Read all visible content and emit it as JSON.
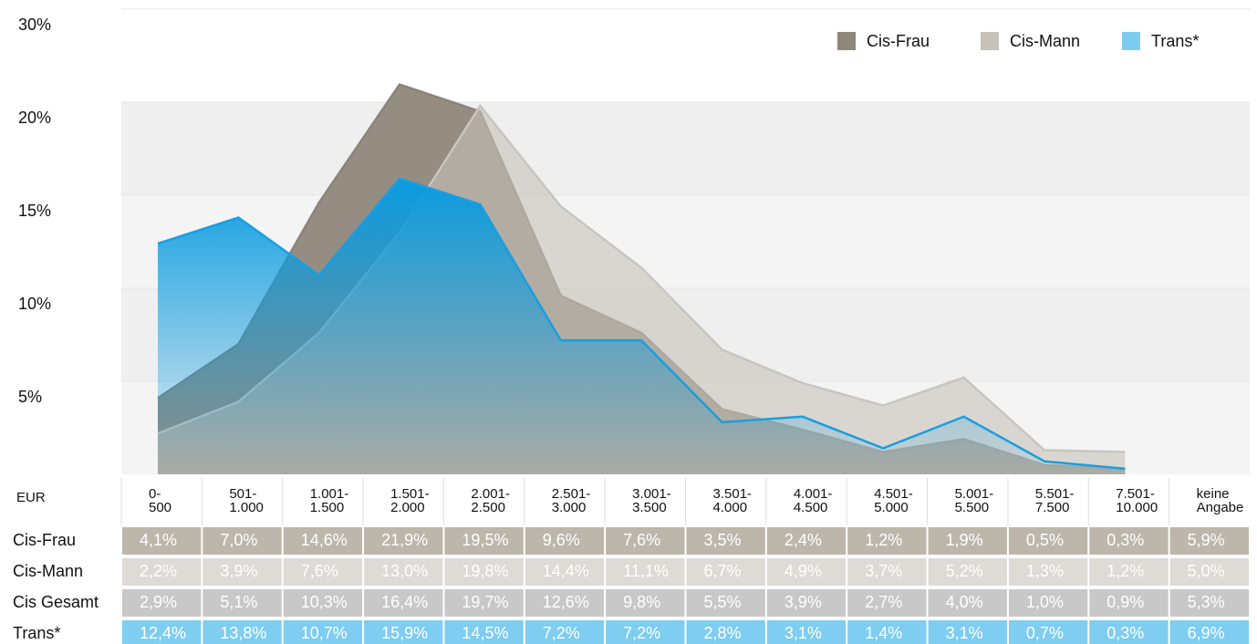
{
  "chart_data": {
    "type": "area",
    "categories": [
      "0-500",
      "501-1.000",
      "1.001-1.500",
      "1.501-2.000",
      "2.001-2.500",
      "2.501-3.000",
      "3.001-3.500",
      "3.501-4.000",
      "4.001-4.500",
      "4.501-5.000",
      "5.001-5.500",
      "5.501-7.500",
      "7.501-10.000",
      "keine Angabe"
    ],
    "unit_header": "EUR",
    "ylim": [
      0,
      30
    ],
    "yticks": [
      {
        "value": 5,
        "label": "5%"
      },
      {
        "value": 10,
        "label": "10%"
      },
      {
        "value": 15,
        "label": "15%"
      },
      {
        "value": 20,
        "label": "20%"
      },
      {
        "value": 30,
        "label": "30%"
      }
    ],
    "legend": "top-right",
    "series": [
      {
        "name": "Cis-Frau",
        "color": "#8f877a",
        "cell_color": "#bdb6ab",
        "area": true,
        "values": [
          4.1,
          7.0,
          14.6,
          21.9,
          19.5,
          9.6,
          7.6,
          3.5,
          2.4,
          1.2,
          1.9,
          0.5,
          0.3,
          5.9
        ],
        "value_labels": [
          "4,1%",
          "7,0%",
          "14,6%",
          "21,9%",
          "19,5%",
          "9,6%",
          "7,6%",
          "3,5%",
          "2,4%",
          "1,2%",
          "1,9%",
          "0,5%",
          "0,3%",
          "5,9%"
        ]
      },
      {
        "name": "Cis-Mann",
        "color": "#c6c1b9",
        "cell_color": "#dedad5",
        "area": true,
        "values": [
          2.2,
          3.9,
          7.6,
          13.0,
          19.8,
          14.4,
          11.1,
          6.7,
          4.9,
          3.7,
          5.2,
          1.3,
          1.2,
          5.0
        ],
        "value_labels": [
          "2,2%",
          "3,9%",
          "7,6%",
          "13,0%",
          "19,8%",
          "14,4%",
          "11,1%",
          "6,7%",
          "4,9%",
          "3,7%",
          "5,2%",
          "1,3%",
          "1,2%",
          "5,0%"
        ]
      },
      {
        "name": "Cis Gesamt",
        "color": "#c8c8c8",
        "cell_color": "#c8c8c8",
        "area": false,
        "values": [
          2.9,
          5.1,
          10.3,
          16.4,
          19.7,
          12.6,
          9.8,
          5.5,
          3.9,
          2.7,
          4.0,
          1.0,
          0.9,
          5.3
        ],
        "value_labels": [
          "2,9%",
          "5,1%",
          "10,3%",
          "16,4%",
          "19,7%",
          "12,6%",
          "9,8%",
          "5,5%",
          "3,9%",
          "2,7%",
          "4,0%",
          "1,0%",
          "0,9%",
          "5,3%"
        ]
      },
      {
        "name": "Trans*",
        "color": "#0a9be0",
        "cell_color": "#7fcdf0",
        "area": true,
        "values": [
          12.4,
          13.8,
          10.7,
          15.9,
          14.5,
          7.2,
          7.2,
          2.8,
          3.1,
          1.4,
          3.1,
          0.7,
          0.3,
          6.9
        ],
        "value_labels": [
          "12,4%",
          "13,8%",
          "10,7%",
          "15,9%",
          "14,5%",
          "7,2%",
          "7,2%",
          "2,8%",
          "3,1%",
          "1,4%",
          "3,1%",
          "0,7%",
          "0,3%",
          "6,9%"
        ]
      }
    ]
  }
}
